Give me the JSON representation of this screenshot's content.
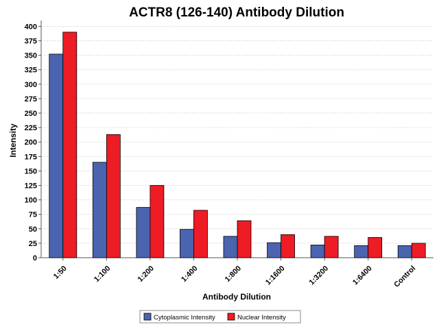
{
  "chart_data": {
    "type": "bar",
    "title": "ACTR8 (126-140) Antibody Dilution",
    "xlabel": "Antibody Dilution",
    "ylabel": "Intensity",
    "categories": [
      "1:50",
      "1:100",
      "1:200",
      "1:400",
      "1:800",
      "1:1600",
      "1:3200",
      "1:6400",
      "Control"
    ],
    "series": [
      {
        "name": "Cytoplasmic Intensity",
        "color": "#4a64b0",
        "values": [
          352,
          165,
          87,
          49,
          37,
          26,
          22,
          21,
          21
        ]
      },
      {
        "name": "Nuclear Intensity",
        "color": "#ee1c24",
        "values": [
          390,
          213,
          125,
          82,
          64,
          40,
          37,
          35,
          25
        ]
      }
    ],
    "ylim": [
      0,
      410
    ],
    "yticks": [
      0,
      25,
      50,
      75,
      100,
      125,
      150,
      175,
      200,
      225,
      250,
      275,
      300,
      325,
      350,
      375,
      400
    ],
    "grid": true,
    "legend": "bottom-center"
  }
}
